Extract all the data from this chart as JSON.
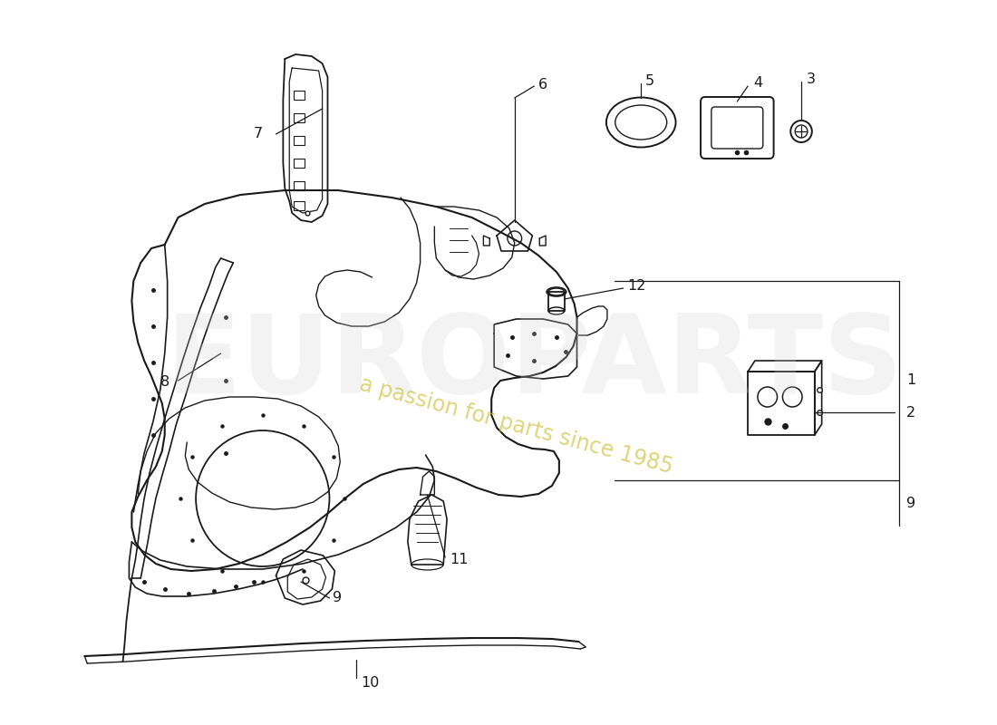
{
  "background_color": "#ffffff",
  "line_color": "#1a1a1a",
  "watermark1": "EUROPARTS",
  "watermark2": "a passion for parts since 1985",
  "figsize": [
    11.0,
    8.0
  ],
  "dpi": 100,
  "xlim": [
    0,
    1100
  ],
  "ylim": [
    800,
    0
  ]
}
